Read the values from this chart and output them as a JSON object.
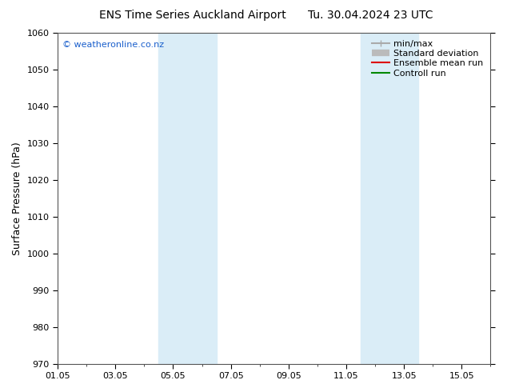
{
  "title_left": "ENS Time Series Auckland Airport",
  "title_right": "Tu. 30.04.2024 23 UTC",
  "ylabel": "Surface Pressure (hPa)",
  "ylim": [
    970,
    1060
  ],
  "yticks": [
    970,
    980,
    990,
    1000,
    1010,
    1020,
    1030,
    1040,
    1050,
    1060
  ],
  "xlim": [
    0,
    15
  ],
  "xtick_labels": [
    "01.05",
    "03.05",
    "05.05",
    "07.05",
    "09.05",
    "11.05",
    "13.05",
    "15.05"
  ],
  "xtick_positions": [
    0,
    2,
    4,
    6,
    8,
    10,
    12,
    14
  ],
  "shaded_bands": [
    {
      "x_start": 3.5,
      "x_end": 5.5
    },
    {
      "x_start": 10.5,
      "x_end": 12.5
    }
  ],
  "shade_color": "#daedf7",
  "watermark_text": "© weatheronline.co.nz",
  "watermark_color": "#1a5fcc",
  "legend_entries": [
    {
      "label": "min/max",
      "color": "#aaaaaa",
      "lw": 1.5
    },
    {
      "label": "Standard deviation",
      "color": "#bbbbbb",
      "lw": 6
    },
    {
      "label": "Ensemble mean run",
      "color": "#dd0000",
      "lw": 1.5
    },
    {
      "label": "Controll run",
      "color": "#008800",
      "lw": 1.5
    }
  ],
  "bg_color": "#ffffff",
  "plot_bg_color": "#ffffff",
  "title_fontsize": 10,
  "axis_label_fontsize": 9,
  "tick_fontsize": 8,
  "legend_fontsize": 8
}
